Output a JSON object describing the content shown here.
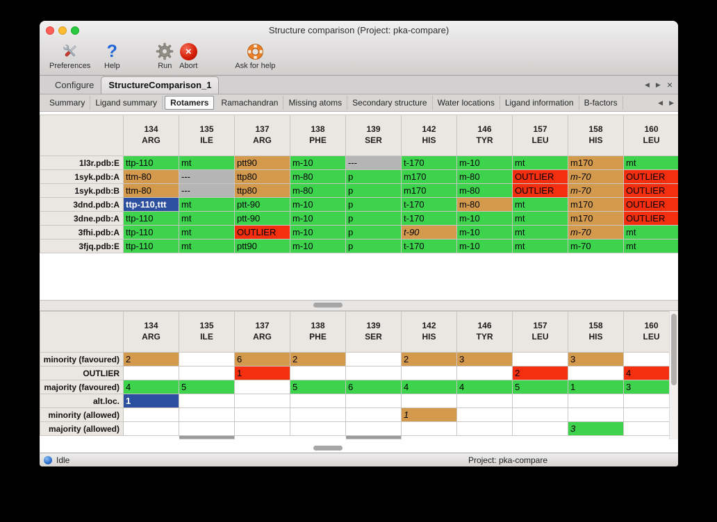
{
  "window": {
    "title": "Structure comparison (Project: pka-compare)"
  },
  "toolbar": [
    {
      "name": "preferences",
      "label": "Preferences"
    },
    {
      "name": "help",
      "label": "Help"
    },
    {
      "name": "run",
      "label": "Run"
    },
    {
      "name": "abort",
      "label": "Abort"
    },
    {
      "name": "ask-for-help",
      "label": "Ask for help"
    }
  ],
  "document_tabs": [
    {
      "label": "Configure",
      "active": false
    },
    {
      "label": "StructureComparison_1",
      "active": true
    }
  ],
  "tab_controls": {
    "prev": "◀",
    "next": "▶",
    "close": "×"
  },
  "sub_tabs": [
    {
      "label": "Summary",
      "active": false
    },
    {
      "label": "Ligand summary",
      "active": false
    },
    {
      "label": "Rotamers",
      "active": true
    },
    {
      "label": "Ramachandran",
      "active": false
    },
    {
      "label": "Missing atoms",
      "active": false
    },
    {
      "label": "Secondary structure",
      "active": false
    },
    {
      "label": "Water locations",
      "active": false
    },
    {
      "label": "Ligand information",
      "active": false
    },
    {
      "label": "B-factors",
      "active": false
    }
  ],
  "columns": [
    {
      "num": "134",
      "res": "ARG"
    },
    {
      "num": "135",
      "res": "ILE"
    },
    {
      "num": "137",
      "res": "ARG"
    },
    {
      "num": "138",
      "res": "PHE"
    },
    {
      "num": "139",
      "res": "SER"
    },
    {
      "num": "142",
      "res": "HIS"
    },
    {
      "num": "146",
      "res": "TYR"
    },
    {
      "num": "157",
      "res": "LEU"
    },
    {
      "num": "158",
      "res": "HIS"
    },
    {
      "num": "160",
      "res": "LEU"
    }
  ],
  "upper_table": {
    "rows": [
      {
        "label": "1l3r.pdb:E",
        "cells": [
          {
            "t": "ttp-110",
            "c": "green"
          },
          {
            "t": "mt",
            "c": "green"
          },
          {
            "t": "ptt90",
            "c": "tan"
          },
          {
            "t": "m-10",
            "c": "green"
          },
          {
            "t": "---",
            "c": "gray"
          },
          {
            "t": "t-170",
            "c": "green"
          },
          {
            "t": "m-10",
            "c": "green"
          },
          {
            "t": "mt",
            "c": "green"
          },
          {
            "t": "m170",
            "c": "tan"
          },
          {
            "t": "mt",
            "c": "green"
          }
        ]
      },
      {
        "label": "1syk.pdb:A",
        "cells": [
          {
            "t": "ttm-80",
            "c": "tan"
          },
          {
            "t": "---",
            "c": "gray"
          },
          {
            "t": "ttp80",
            "c": "tan"
          },
          {
            "t": "m-80",
            "c": "green"
          },
          {
            "t": "p",
            "c": "green"
          },
          {
            "t": "m170",
            "c": "green"
          },
          {
            "t": "m-80",
            "c": "green"
          },
          {
            "t": "OUTLIER",
            "c": "red"
          },
          {
            "t": "m-70",
            "c": "tan",
            "i": true
          },
          {
            "t": "OUTLIER",
            "c": "red"
          }
        ]
      },
      {
        "label": "1syk.pdb:B",
        "cells": [
          {
            "t": "ttm-80",
            "c": "tan"
          },
          {
            "t": "---",
            "c": "gray"
          },
          {
            "t": "ttp80",
            "c": "tan"
          },
          {
            "t": "m-80",
            "c": "green"
          },
          {
            "t": "p",
            "c": "green"
          },
          {
            "t": "m170",
            "c": "green"
          },
          {
            "t": "m-80",
            "c": "green"
          },
          {
            "t": "OUTLIER",
            "c": "red"
          },
          {
            "t": "m-70",
            "c": "tan",
            "i": true
          },
          {
            "t": "OUTLIER",
            "c": "red"
          }
        ]
      },
      {
        "label": "3dnd.pdb:A",
        "cells": [
          {
            "t": "ttp-110,ttt",
            "c": "blue",
            "sel": true
          },
          {
            "t": "mt",
            "c": "green"
          },
          {
            "t": "ptt-90",
            "c": "green"
          },
          {
            "t": "m-10",
            "c": "green"
          },
          {
            "t": "p",
            "c": "green"
          },
          {
            "t": "t-170",
            "c": "green"
          },
          {
            "t": "m-80",
            "c": "tan"
          },
          {
            "t": "mt",
            "c": "green"
          },
          {
            "t": "m170",
            "c": "tan"
          },
          {
            "t": "OUTLIER",
            "c": "red"
          }
        ]
      },
      {
        "label": "3dne.pdb:A",
        "cells": [
          {
            "t": "ttp-110",
            "c": "green"
          },
          {
            "t": "mt",
            "c": "green"
          },
          {
            "t": "ptt-90",
            "c": "green"
          },
          {
            "t": "m-10",
            "c": "green"
          },
          {
            "t": "p",
            "c": "green"
          },
          {
            "t": "t-170",
            "c": "green"
          },
          {
            "t": "m-10",
            "c": "green"
          },
          {
            "t": "mt",
            "c": "green"
          },
          {
            "t": "m170",
            "c": "tan"
          },
          {
            "t": "OUTLIER",
            "c": "red"
          }
        ]
      },
      {
        "label": "3fhi.pdb:A",
        "cells": [
          {
            "t": "ttp-110",
            "c": "green"
          },
          {
            "t": "mt",
            "c": "green"
          },
          {
            "t": "OUTLIER",
            "c": "red"
          },
          {
            "t": "m-10",
            "c": "green"
          },
          {
            "t": "p",
            "c": "green"
          },
          {
            "t": "t-90",
            "c": "tan",
            "i": true
          },
          {
            "t": "m-10",
            "c": "green"
          },
          {
            "t": "mt",
            "c": "green"
          },
          {
            "t": "m-70",
            "c": "tan",
            "i": true
          },
          {
            "t": "mt",
            "c": "green"
          }
        ]
      },
      {
        "label": "3fjq.pdb:E",
        "cells": [
          {
            "t": "ttp-110",
            "c": "green"
          },
          {
            "t": "mt",
            "c": "green"
          },
          {
            "t": "ptt90",
            "c": "green"
          },
          {
            "t": "m-10",
            "c": "green"
          },
          {
            "t": "p",
            "c": "green"
          },
          {
            "t": "t-170",
            "c": "green"
          },
          {
            "t": "m-10",
            "c": "green"
          },
          {
            "t": "mt",
            "c": "green"
          },
          {
            "t": "m-70",
            "c": "green"
          },
          {
            "t": "mt",
            "c": "green"
          }
        ]
      }
    ]
  },
  "lower_table": {
    "rows": [
      {
        "label": "minority (favoured)",
        "cells": [
          {
            "t": "2",
            "c": "tan"
          },
          null,
          {
            "t": "6",
            "c": "tan"
          },
          {
            "t": "2",
            "c": "tan"
          },
          null,
          {
            "t": "2",
            "c": "tan"
          },
          {
            "t": "3",
            "c": "tan"
          },
          null,
          {
            "t": "3",
            "c": "tan"
          },
          null
        ]
      },
      {
        "label": "OUTLIER",
        "cells": [
          null,
          null,
          {
            "t": "1",
            "c": "red"
          },
          null,
          null,
          null,
          null,
          {
            "t": "2",
            "c": "red"
          },
          null,
          {
            "t": "4",
            "c": "red"
          }
        ]
      },
      {
        "label": "majority (favoured)",
        "cells": [
          {
            "t": "4",
            "c": "green"
          },
          {
            "t": "5",
            "c": "green"
          },
          null,
          {
            "t": "5",
            "c": "green"
          },
          {
            "t": "6",
            "c": "green"
          },
          {
            "t": "4",
            "c": "green"
          },
          {
            "t": "4",
            "c": "green"
          },
          {
            "t": "5",
            "c": "green"
          },
          {
            "t": "1",
            "c": "green"
          },
          {
            "t": "3",
            "c": "green"
          }
        ]
      },
      {
        "label": "alt.loc.",
        "cells": [
          {
            "t": "1",
            "c": "blue",
            "sel": true
          },
          null,
          null,
          null,
          null,
          null,
          null,
          null,
          null,
          null
        ]
      },
      {
        "label": "minority (allowed)",
        "cells": [
          null,
          null,
          null,
          null,
          null,
          {
            "t": "1",
            "c": "tan",
            "i": true
          },
          null,
          null,
          null,
          null
        ]
      },
      {
        "label": "majority (allowed)",
        "cells": [
          null,
          null,
          null,
          null,
          null,
          null,
          null,
          null,
          {
            "t": "3",
            "c": "green",
            "i": true
          },
          null
        ]
      }
    ],
    "partial_gray_columns": [
      "135",
      "139"
    ]
  },
  "status_bar": {
    "status": "Idle",
    "project": "Project: pka-compare"
  },
  "colors": {
    "green": "#3ed34d",
    "tan": "#d39a4e",
    "red": "#f42f10",
    "gray": "#b5b5b5",
    "blue": "#2d4f9f"
  }
}
